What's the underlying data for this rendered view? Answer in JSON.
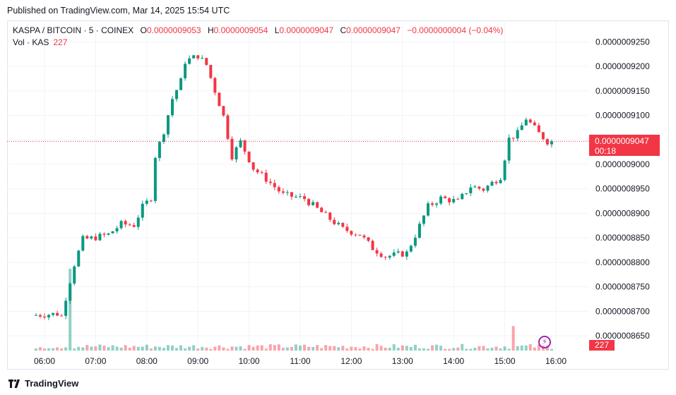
{
  "published": "Published on TradingView.com, Mar 14, 2025 15:54 UTC",
  "legend": {
    "symbol": "KASPA / BITCOIN · 5 · COINEX",
    "open_label": "O",
    "open": "0.0000009053",
    "high_label": "H",
    "high": "0.0000009054",
    "low_label": "L",
    "low": "0.0000009047",
    "close_label": "C",
    "close": "0.0000009047",
    "change": "−0.0000000004 (−0.04%)"
  },
  "volume_legend": {
    "label": "Vol · KAS",
    "value": "227"
  },
  "last_price_tag": {
    "price": "0.0000009047",
    "countdown": "00:18"
  },
  "volume_tag": "227",
  "brand": "TradingView",
  "colors": {
    "up": "#089981",
    "down": "#f23645",
    "grid": "#f0f3fa",
    "text": "#131722"
  },
  "chart_data": {
    "type": "candlestick",
    "timeframe": "5",
    "y_ticks": [
      "0.0000009250",
      "0.0000009200",
      "0.0000009150",
      "0.0000009100",
      "0.0000009050",
      "0.0000009000",
      "0.0000008950",
      "0.0000008900",
      "0.0000008850",
      "0.0000008800",
      "0.0000008750",
      "0.0000008700",
      "0.0000008650"
    ],
    "y_tick_values": [
      925.0,
      920.0,
      915.0,
      910.0,
      905.0,
      900.0,
      895.0,
      890.0,
      885.0,
      880.0,
      875.0,
      870.0,
      865.0
    ],
    "price_unit": "1e-9 BTC",
    "ylim": [
      862.0,
      928.5
    ],
    "x_ticks": [
      "06:00",
      "07:00",
      "08:00",
      "09:00",
      "10:00",
      "11:00",
      "12:00",
      "13:00",
      "14:00",
      "15:00",
      "16:00"
    ],
    "last_price": 904.7,
    "anchors": [
      {
        "t": "05:50",
        "p": 869.2
      },
      {
        "t": "06:20",
        "p": 869.5
      },
      {
        "t": "06:25",
        "p": 869.0
      },
      {
        "t": "06:30",
        "p": 872.8
      },
      {
        "t": "06:40",
        "p": 879.6
      },
      {
        "t": "06:50",
        "p": 884.7
      },
      {
        "t": "07:00",
        "p": 884.9
      },
      {
        "t": "07:20",
        "p": 885.7
      },
      {
        "t": "07:35",
        "p": 887.8
      },
      {
        "t": "07:50",
        "p": 887.6
      },
      {
        "t": "08:00",
        "p": 891.3
      },
      {
        "t": "08:10",
        "p": 893.2
      },
      {
        "t": "08:15",
        "p": 901.7
      },
      {
        "t": "08:25",
        "p": 906.8
      },
      {
        "t": "08:35",
        "p": 913.4
      },
      {
        "t": "08:45",
        "p": 917.0
      },
      {
        "t": "08:50",
        "p": 921.0
      },
      {
        "t": "09:05",
        "p": 922.2
      },
      {
        "t": "09:15",
        "p": 920.3
      },
      {
        "t": "09:25",
        "p": 915.0
      },
      {
        "t": "09:35",
        "p": 909.8
      },
      {
        "t": "09:45",
        "p": 901.7
      },
      {
        "t": "09:55",
        "p": 904.6
      },
      {
        "t": "10:10",
        "p": 899.2
      },
      {
        "t": "10:25",
        "p": 897.0
      },
      {
        "t": "10:45",
        "p": 893.8
      },
      {
        "t": "11:10",
        "p": 893.0
      },
      {
        "t": "11:30",
        "p": 890.2
      },
      {
        "t": "11:55",
        "p": 886.8
      },
      {
        "t": "12:15",
        "p": 885.7
      },
      {
        "t": "12:30",
        "p": 882.9
      },
      {
        "t": "12:45",
        "p": 881.2
      },
      {
        "t": "13:10",
        "p": 881.9
      },
      {
        "t": "13:20",
        "p": 885.5
      },
      {
        "t": "13:35",
        "p": 891.4
      },
      {
        "t": "13:50",
        "p": 893.1
      },
      {
        "t": "14:10",
        "p": 892.4
      },
      {
        "t": "14:25",
        "p": 895.5
      },
      {
        "t": "14:40",
        "p": 894.9
      },
      {
        "t": "14:50",
        "p": 896.2
      },
      {
        "t": "15:00",
        "p": 897.5
      },
      {
        "t": "15:10",
        "p": 905.2
      },
      {
        "t": "15:20",
        "p": 906.3
      },
      {
        "t": "15:30",
        "p": 909.4
      },
      {
        "t": "15:45",
        "p": 906.3
      },
      {
        "t": "15:55",
        "p": 904.7
      }
    ],
    "volume": {
      "last": 227,
      "spikes": [
        {
          "t": "06:30",
          "relative": 1.0
        },
        {
          "t": "15:10",
          "relative": 0.3
        }
      ]
    }
  }
}
